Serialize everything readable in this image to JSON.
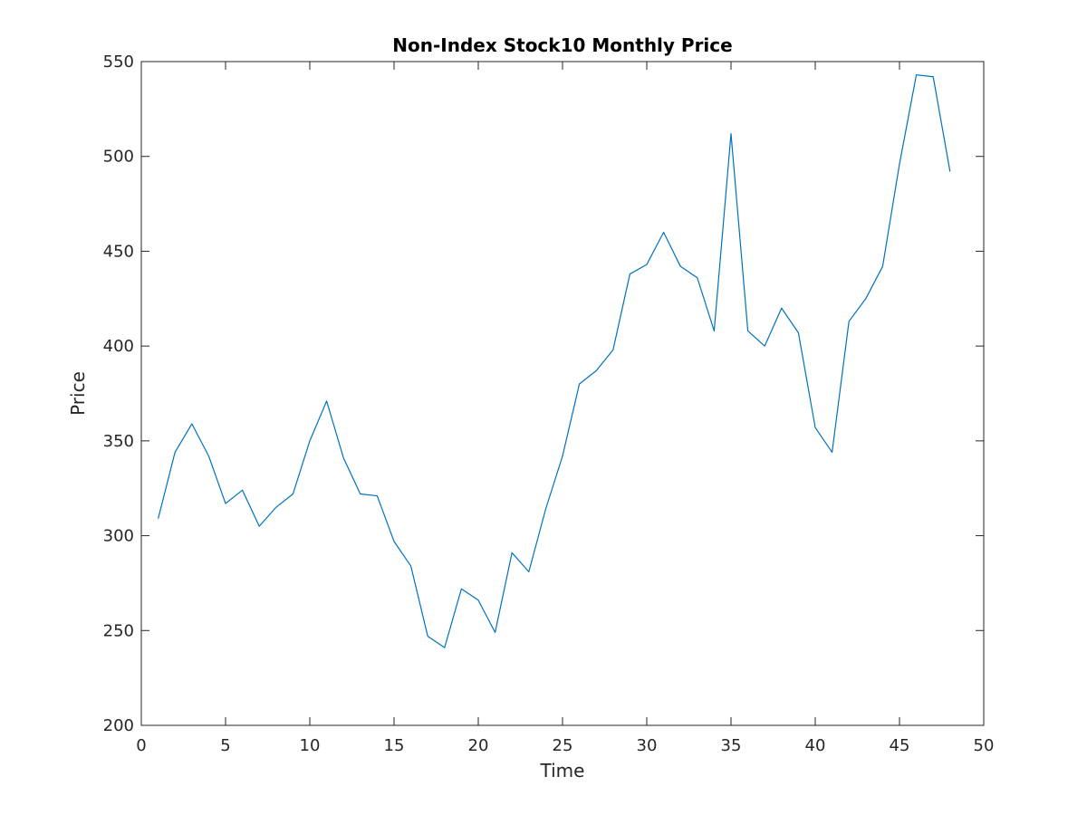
{
  "chart_data": {
    "type": "line",
    "title": "Non-Index Stock10 Monthly Price",
    "xlabel": "Time",
    "ylabel": "Price",
    "xlim": [
      0,
      50
    ],
    "ylim": [
      200,
      550
    ],
    "xticks": [
      0,
      5,
      10,
      15,
      20,
      25,
      30,
      35,
      40,
      45,
      50
    ],
    "yticks": [
      200,
      250,
      300,
      350,
      400,
      450,
      500,
      550
    ],
    "grid": false,
    "legend": "none",
    "series": [
      {
        "color": "#0072bd",
        "x": [
          1,
          2,
          3,
          4,
          5,
          6,
          7,
          8,
          9,
          10,
          11,
          12,
          13,
          14,
          15,
          16,
          17,
          18,
          19,
          20,
          21,
          22,
          23,
          24,
          25,
          26,
          27,
          28,
          29,
          30,
          31,
          32,
          33,
          34,
          35,
          36,
          37,
          38,
          39,
          40,
          41,
          42,
          43,
          44,
          45,
          46,
          47,
          48
        ],
        "y": [
          309,
          344,
          359,
          342,
          317,
          324,
          305,
          315,
          322,
          350,
          371,
          341,
          322,
          321,
          297,
          284,
          247,
          241,
          272,
          266,
          249,
          291,
          281,
          314,
          342,
          380,
          387,
          398,
          438,
          443,
          460,
          442,
          436,
          408,
          512,
          408,
          400,
          420,
          407,
          357,
          344,
          413,
          425,
          442,
          496,
          543,
          542,
          492
        ]
      }
    ]
  }
}
